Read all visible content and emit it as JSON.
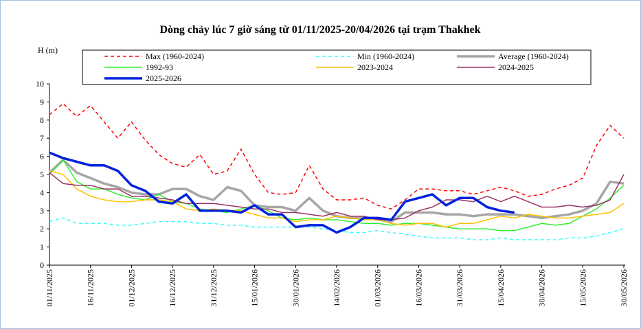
{
  "chart_data": {
    "type": "line",
    "title": "Dòng chảy lúc 7 giờ sáng từ 01/11/2025-20/04/2026 tại trạm Thakhek",
    "y_label": "H (m)",
    "categories": [
      "01/11/2025",
      null,
      null,
      "16/11/2025",
      null,
      null,
      "01/12/2025",
      null,
      null,
      "16/12/2025",
      null,
      null,
      "31/12/2025",
      null,
      null,
      "15/01/2026",
      null,
      null,
      "30/01/2026",
      null,
      null,
      "14/02/2026",
      null,
      null,
      "01/03/2026",
      null,
      null,
      "16/03/2026",
      null,
      null,
      "31/03/2026",
      null,
      null,
      "15/04/2026",
      null,
      null,
      "30/04/2026",
      null,
      null,
      "15/05/2026",
      null,
      null,
      "30/05/2026"
    ],
    "ylim": [
      0,
      10
    ],
    "yticks": [
      0,
      1,
      2,
      3,
      4,
      5,
      6,
      7,
      8,
      9,
      10
    ],
    "series": [
      {
        "name": "Max (1960-2024)",
        "color": "#ff0000",
        "line_style": "dashed",
        "line_weight": "normal",
        "values": [
          8.3,
          8.9,
          8.2,
          8.8,
          7.9,
          7.0,
          7.9,
          6.9,
          6.1,
          5.6,
          5.4,
          6.1,
          5.0,
          5.2,
          6.4,
          5.0,
          4.0,
          3.9,
          4.0,
          5.5,
          4.2,
          3.6,
          3.6,
          3.7,
          3.3,
          3.1,
          3.6,
          4.2,
          4.2,
          4.1,
          4.1,
          3.9,
          4.1,
          4.3,
          4.1,
          3.8,
          3.9,
          4.2,
          4.4,
          4.8,
          6.6,
          7.7,
          7.0
        ]
      },
      {
        "name": "Min (1960-2024)",
        "color": "#33ffff",
        "line_style": "dashed",
        "line_weight": "normal",
        "values": [
          2.4,
          2.6,
          2.3,
          2.3,
          2.3,
          2.2,
          2.2,
          2.3,
          2.4,
          2.4,
          2.4,
          2.3,
          2.3,
          2.2,
          2.2,
          2.1,
          2.1,
          2.1,
          2.1,
          2.1,
          2.0,
          1.9,
          1.8,
          1.8,
          1.9,
          1.8,
          1.7,
          1.6,
          1.5,
          1.5,
          1.5,
          1.4,
          1.4,
          1.5,
          1.4,
          1.4,
          1.4,
          1.4,
          1.5,
          1.5,
          1.6,
          1.8,
          2.0
        ]
      },
      {
        "name": "Average (1960-2024)",
        "color": "#a6a6a6",
        "line_style": "solid",
        "line_weight": "heavy",
        "values": [
          5.1,
          5.8,
          5.1,
          4.8,
          4.5,
          4.3,
          4.0,
          3.9,
          3.9,
          4.2,
          4.2,
          3.8,
          3.6,
          4.3,
          4.1,
          3.3,
          3.2,
          3.2,
          3.0,
          3.7,
          3.0,
          2.7,
          2.6,
          2.6,
          2.6,
          2.4,
          2.9,
          2.9,
          2.9,
          2.8,
          2.8,
          2.7,
          2.8,
          2.8,
          2.8,
          2.7,
          2.6,
          2.7,
          2.8,
          3.0,
          3.4,
          4.6,
          4.5
        ]
      },
      {
        "name": "1992-93",
        "color": "#33ee33",
        "line_style": "solid",
        "line_weight": "normal",
        "values": [
          5.0,
          5.8,
          4.6,
          4.2,
          4.2,
          3.9,
          3.7,
          3.6,
          3.9,
          3.5,
          3.4,
          3.1,
          3.0,
          2.9,
          3.1,
          3.3,
          3.0,
          2.6,
          2.5,
          2.6,
          2.5,
          2.5,
          2.4,
          2.3,
          2.3,
          2.2,
          2.3,
          2.3,
          2.2,
          2.1,
          2.0,
          2.0,
          2.0,
          1.9,
          1.9,
          2.1,
          2.3,
          2.2,
          2.3,
          2.7,
          3.1,
          3.7,
          4.4
        ]
      },
      {
        "name": "2023-2024",
        "color": "#ffc000",
        "line_style": "solid",
        "line_weight": "normal",
        "values": [
          5.2,
          5.0,
          4.2,
          3.8,
          3.6,
          3.5,
          3.5,
          3.6,
          3.6,
          3.5,
          3.1,
          3.0,
          3.1,
          3.0,
          3.0,
          2.8,
          2.6,
          2.6,
          2.4,
          2.5,
          2.5,
          2.7,
          2.6,
          2.5,
          2.5,
          2.3,
          2.2,
          2.3,
          2.3,
          2.1,
          2.3,
          2.3,
          2.5,
          2.7,
          2.6,
          2.8,
          2.7,
          2.6,
          2.6,
          2.7,
          2.8,
          2.9,
          3.4
        ]
      },
      {
        "name": "2024-2025",
        "color": "#993366",
        "line_style": "solid",
        "line_weight": "normal",
        "values": [
          5.1,
          4.5,
          4.4,
          4.4,
          4.2,
          4.2,
          3.8,
          3.8,
          3.7,
          3.6,
          3.4,
          3.4,
          3.4,
          3.3,
          3.2,
          3.1,
          3.1,
          2.9,
          2.9,
          2.8,
          2.7,
          2.9,
          2.7,
          2.7,
          2.5,
          2.5,
          2.6,
          3.0,
          3.2,
          3.6,
          3.6,
          3.5,
          3.8,
          3.5,
          3.8,
          3.5,
          3.2,
          3.2,
          3.3,
          3.2,
          3.3,
          3.6,
          5.0
        ]
      },
      {
        "name": "2025-2026",
        "color": "#0022dd",
        "line_style": "solid",
        "line_weight": "heavy",
        "values": [
          6.2,
          5.9,
          5.7,
          5.5,
          5.5,
          5.2,
          4.4,
          4.1,
          3.5,
          3.4,
          3.9,
          3.0,
          3.0,
          3.0,
          2.9,
          3.3,
          2.8,
          2.8,
          2.1,
          2.2,
          2.2,
          1.8,
          2.1,
          2.6,
          2.6,
          2.5,
          3.5,
          3.7,
          3.9,
          3.3,
          3.7,
          3.7,
          3.2,
          3.0,
          2.9,
          null,
          null,
          null,
          null,
          null,
          null,
          null,
          null
        ]
      }
    ]
  }
}
